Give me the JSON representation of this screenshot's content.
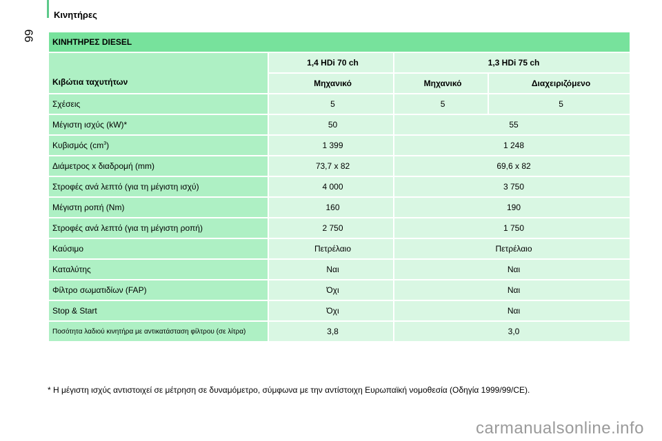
{
  "header": {
    "section_title": "Κινητήρες",
    "page_number": "66"
  },
  "table": {
    "title": "ΚΙΝΗΤΗΡΕΣ DIESEL",
    "gearbox_label": "Κιβώτια ταχυτήτων",
    "engine_1": "1,4 HDi 70 ch",
    "engine_2": "1,3 HDi 75 ch",
    "gearbox_1": "Μηχανικό",
    "gearbox_2": "Μηχανικό",
    "gearbox_3": "Διαχειριζόμενο",
    "rows": [
      {
        "label": "Σχέσεις",
        "v1": "5",
        "v2": "5",
        "v3": "5"
      },
      {
        "label": "Μέγιστη ισχύς (kW)*",
        "v1": "50",
        "v23": "55"
      },
      {
        "label": "Κυβισμός (cm",
        "label_sup": "3",
        "label_end": ")",
        "v1": "1 399",
        "v23": "1 248"
      },
      {
        "label": "Διάμετρος x διαδρομή (mm)",
        "v1": "73,7 x 82",
        "v23": "69,6 x 82"
      },
      {
        "label": "Στροφές ανά λεπτό (για τη μέγιστη ισχύ)",
        "v1": "4 000",
        "v23": "3 750"
      },
      {
        "label": "Μέγιστη ροπή (Nm)",
        "v1": "160",
        "v23": "190"
      },
      {
        "label": "Στροφές ανά λεπτό (για τη μέγιστη ροπή)",
        "v1": "2 750",
        "v23": "1 750"
      },
      {
        "label": "Καύσιμο",
        "v1": "Πετρέλαιο",
        "v23": "Πετρέλαιο"
      },
      {
        "label": "Καταλύτης",
        "v1": "Ναι",
        "v23": "Ναι"
      },
      {
        "label": "Φίλτρο σωματιδίων (FAP)",
        "v1": "Όχι",
        "v23": "Ναι"
      },
      {
        "label": "Stop & Start",
        "v1": "Όχι",
        "v23": "Ναι"
      },
      {
        "label": "Ποσότητα λαδιού κινητήρα με αντικατάσταση φίλτρου (σε λίτρα)",
        "v1": "3,8",
        "v23": "3,0"
      }
    ]
  },
  "footnote": "* Η μέγιστη ισχύς αντιστοιχεί σε μέτρηση σε δυναμόμετρο, σύμφωνα με την αντίστοιχη Ευρωπαϊκή νομοθεσία (Οδηγία 1999/99/CE).",
  "watermark": "carmanualsonline.info",
  "colors": {
    "header_green": "#77e29c",
    "label_green": "#aef0c4",
    "value_green": "#d9f7e3"
  }
}
